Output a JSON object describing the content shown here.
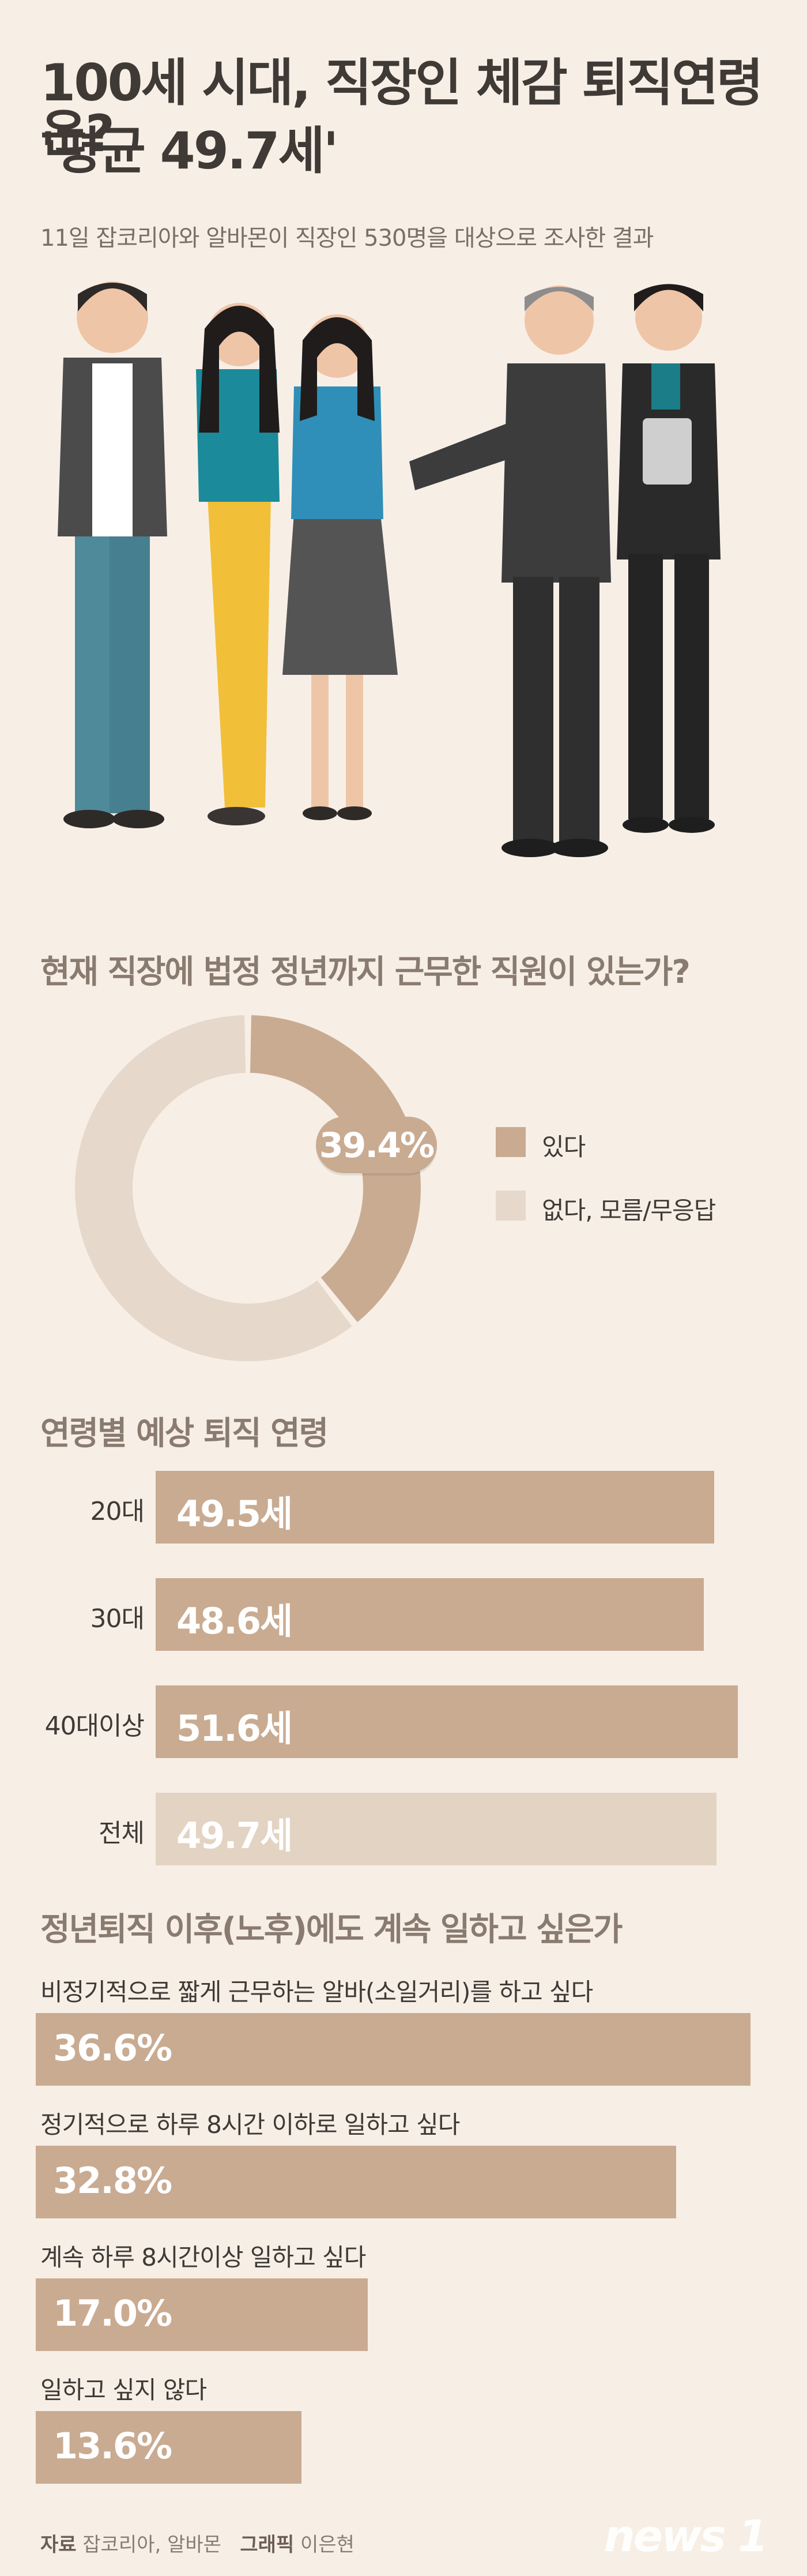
{
  "header": {
    "title_line1": "100세 시대, 직장인 체감 퇴직연령은?",
    "title_line2": "'평균 49.7세'",
    "subtitle": "11일 잡코리아와 알바몬이 직장인 530명을 대상으로 조사한 결과"
  },
  "colors": {
    "background": "#f7efe6",
    "bar": "#c9ab92",
    "bar_light": "#e3d3c3",
    "donut_dark": "#c9ab92",
    "donut_light": "#e6d8ca"
  },
  "chart_data": [
    {
      "type": "pie",
      "title": "현재 직장에 법정 정년까지 근무한 직원이 있는가?",
      "series": [
        {
          "name": "있다",
          "value": 39.4,
          "label": "39.4%",
          "color": "#c9ab92"
        },
        {
          "name": "없다, 모름/무응답",
          "value": 60.6,
          "color": "#e6d8ca"
        }
      ],
      "legend": "right"
    },
    {
      "type": "bar",
      "title": "연령별 예상 퇴직 연령",
      "categories": [
        "20대",
        "30대",
        "40대이상",
        "전체"
      ],
      "values": [
        49.5,
        48.6,
        51.6,
        49.7
      ],
      "value_labels": [
        "49.5",
        "48.6",
        "51.6",
        "49.7"
      ],
      "unit": "세"
    },
    {
      "type": "bar",
      "title": "정년퇴직 이후(노후)에도 계속 일하고 싶은가",
      "categories": [
        "비정기적으로 짧게 근무하는 알바(소일거리)를 하고 싶다",
        "정기적으로 하루 8시간 이하로 일하고 싶다",
        "계속 하루 8시간이상 일하고 싶다",
        "일하고 싶지 않다"
      ],
      "values": [
        36.6,
        32.8,
        17.0,
        13.6
      ],
      "value_labels": [
        "36.6%",
        "32.8%",
        "17.0%",
        "13.6%"
      ]
    }
  ],
  "footer": {
    "source_label": "자료",
    "source": "잡코리아, 알바몬",
    "graphic_label": "그래픽",
    "graphic": "이은현",
    "logo": "news 1"
  }
}
